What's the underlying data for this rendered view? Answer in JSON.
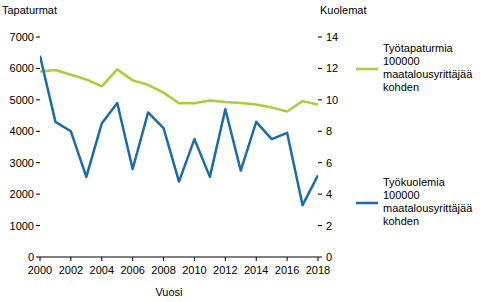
{
  "chart_data": {
    "type": "line",
    "y_label": "Tapaturmat",
    "y2_label": "Kuolemat",
    "x_label": "Vuosi",
    "x": [
      2000,
      2001,
      2002,
      2003,
      2004,
      2005,
      2006,
      2007,
      2008,
      2009,
      2010,
      2011,
      2012,
      2013,
      2014,
      2015,
      2016,
      2017,
      2018
    ],
    "xlim": [
      2000,
      2018
    ],
    "xticks": [
      2000,
      2002,
      2004,
      2006,
      2008,
      2010,
      2012,
      2014,
      2016,
      2018
    ],
    "ylim": [
      0,
      7000
    ],
    "yticks": [
      0,
      1000,
      2000,
      3000,
      4000,
      5000,
      6000,
      7000
    ],
    "y2lim": [
      0,
      14
    ],
    "y2ticks": [
      0,
      2,
      4,
      6,
      8,
      10,
      12,
      14
    ],
    "grid": false,
    "legend": "right",
    "series": [
      {
        "name": "Työtapaturmia 100000 maatalousyrittäjää kohden",
        "color": "#a8cf3a",
        "values": [
          5900,
          5950,
          5800,
          5650,
          5430,
          5970,
          5620,
          5480,
          5230,
          4890,
          4890,
          4980,
          4930,
          4900,
          4850,
          4760,
          4630,
          4960,
          4850
        ]
      },
      {
        "name": "Työkuolemia 100000 maatalousyrittäjää kohden",
        "color": "#1b6ca8",
        "axis": "y2",
        "values": [
          12.8,
          8.6,
          8.0,
          5.1,
          8.5,
          9.8,
          5.6,
          9.2,
          8.2,
          4.8,
          7.5,
          5.1,
          9.4,
          5.5,
          8.6,
          7.5,
          7.9,
          3.3,
          5.2
        ]
      }
    ]
  }
}
